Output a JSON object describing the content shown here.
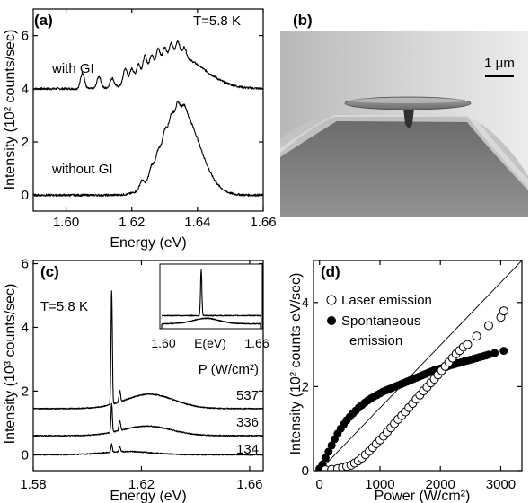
{
  "panels": {
    "a": {
      "label": "(a)",
      "annotation": "T=5.8 K"
    },
    "b": {
      "label": "(b)",
      "scalebar": "1 μm"
    },
    "c": {
      "label": "(c)",
      "annotation": "T=5.8 K",
      "power_header": "P (W/cm²)",
      "inset_xlabel": "E(eV)"
    },
    "d": {
      "label": "(d)"
    }
  },
  "chart_data": [
    {
      "panel": "a",
      "type": "line",
      "xlabel": "Energy (eV)",
      "ylabel": "Intensity (10² counts/sec)",
      "xlim": [
        1.59,
        1.66
      ],
      "ylim": [
        -0.6,
        7
      ],
      "xticks": [
        "1.60",
        "1.62",
        "1.64",
        "1.66"
      ],
      "yticks": [
        "0",
        "2",
        "4",
        "6"
      ],
      "series": [
        {
          "name": "with GI",
          "baseline": 4.0,
          "envelope": {
            "center": 1.634,
            "width": 0.008,
            "height": 1.2
          },
          "peaks": [
            [
              1.605,
              0.6
            ],
            [
              1.61,
              0.45
            ],
            [
              1.614,
              0.35
            ],
            [
              1.618,
              0.6
            ],
            [
              1.62,
              0.5
            ],
            [
              1.622,
              0.55
            ],
            [
              1.624,
              0.7
            ],
            [
              1.626,
              0.55
            ],
            [
              1.628,
              0.6
            ],
            [
              1.63,
              0.5
            ],
            [
              1.632,
              0.55
            ],
            [
              1.634,
              0.6
            ],
            [
              1.636,
              0.4
            ]
          ]
        },
        {
          "name": "without GI",
          "baseline": 0.0,
          "envelope": {
            "center": 1.635,
            "width": 0.0055,
            "height": 3.2
          },
          "peaks": [
            [
              1.623,
              0.25
            ],
            [
              1.626,
              0.3
            ],
            [
              1.628,
              0.3
            ],
            [
              1.63,
              0.35
            ],
            [
              1.632,
              0.3
            ],
            [
              1.634,
              0.35
            ],
            [
              1.636,
              0.25
            ]
          ]
        }
      ]
    },
    {
      "panel": "c",
      "type": "line",
      "xlabel": "Energy (eV)",
      "ylabel": "Intensity (10³ counts/sec)",
      "xlim": [
        1.58,
        1.665
      ],
      "ylim": [
        -0.5,
        6.1
      ],
      "xticks": [
        "1.58",
        "1.62",
        "1.66"
      ],
      "yticks": [
        "0",
        "2",
        "4",
        "6"
      ],
      "series": [
        {
          "name": "537",
          "baseline": 1.45,
          "lasing_peak": [
            1.609,
            3.55
          ],
          "side_peak": [
            1.612,
            0.35
          ],
          "broad": [
            1.623,
            0.45
          ]
        },
        {
          "name": "336",
          "baseline": 0.6,
          "lasing_peak": [
            1.609,
            0.9
          ],
          "side_peak": [
            1.612,
            0.3
          ],
          "broad": [
            1.622,
            0.3
          ]
        },
        {
          "name": "134",
          "baseline": 0.0,
          "lasing_peak": [
            1.609,
            0.25
          ],
          "side_peak": [
            1.612,
            0.15
          ],
          "broad": [
            1.615,
            0.1
          ]
        }
      ],
      "inset": {
        "xlim": [
          1.6,
          1.66
        ],
        "xticks": [
          "1.60",
          "1.66"
        ],
        "series": [
          {
            "name": "upper",
            "baseline": 0.25,
            "lasing_peak": [
              1.624,
              1.0
            ]
          },
          {
            "name": "lower",
            "baseline": 0.07,
            "broad": [
              1.627,
              0.12
            ]
          }
        ]
      }
    },
    {
      "panel": "d",
      "type": "scatter",
      "xlabel": "Power (W/cm²)",
      "ylabel": "Intensity (10² counts eV/sec)",
      "xlim": [
        -100,
        3350
      ],
      "ylim": [
        0,
        5
      ],
      "xticks": [
        "0",
        "1000",
        "2000",
        "3000"
      ],
      "yticks": [
        "0",
        "2",
        "4"
      ],
      "series": [
        {
          "name": "Laser emission",
          "marker": "open-circle",
          "x": [
            100,
            200,
            300,
            380,
            450,
            520,
            580,
            640,
            700,
            760,
            820,
            880,
            940,
            1000,
            1060,
            1120,
            1180,
            1240,
            1300,
            1360,
            1420,
            1480,
            1540,
            1600,
            1660,
            1720,
            1780,
            1840,
            1900,
            1960,
            2020,
            2080,
            2140,
            2200,
            2260,
            2320,
            2380,
            2450,
            2600,
            2800,
            3000,
            3050
          ],
          "y": [
            0.02,
            0.03,
            0.05,
            0.07,
            0.1,
            0.13,
            0.18,
            0.23,
            0.3,
            0.38,
            0.46,
            0.55,
            0.64,
            0.73,
            0.82,
            0.92,
            1.02,
            1.12,
            1.22,
            1.31,
            1.4,
            1.5,
            1.6,
            1.7,
            1.8,
            1.9,
            1.99,
            2.09,
            2.18,
            2.28,
            2.38,
            2.48,
            2.58,
            2.68,
            2.78,
            2.86,
            2.94,
            3.0,
            3.2,
            3.45,
            3.65,
            3.8
          ]
        },
        {
          "name": "Spontaneous emission",
          "marker": "filled-circle",
          "x": [
            0,
            50,
            100,
            150,
            200,
            250,
            300,
            350,
            400,
            450,
            500,
            550,
            600,
            650,
            700,
            750,
            800,
            850,
            900,
            950,
            1000,
            1050,
            1100,
            1150,
            1200,
            1250,
            1300,
            1350,
            1400,
            1450,
            1500,
            1550,
            1600,
            1650,
            1700,
            1750,
            1800,
            1850,
            1900,
            1950,
            2000,
            2050,
            2100,
            2150,
            2200,
            2250,
            2300,
            2350,
            2400,
            2450,
            2500,
            2550,
            2600,
            2650,
            2700,
            2750,
            2800,
            2900,
            3050
          ],
          "y": [
            0.05,
            0.15,
            0.3,
            0.45,
            0.6,
            0.75,
            0.88,
            1.0,
            1.1,
            1.2,
            1.28,
            1.36,
            1.43,
            1.5,
            1.56,
            1.62,
            1.67,
            1.72,
            1.76,
            1.8,
            1.84,
            1.88,
            1.91,
            1.94,
            1.97,
            2.0,
            2.03,
            2.06,
            2.09,
            2.12,
            2.15,
            2.18,
            2.21,
            2.24,
            2.27,
            2.3,
            2.33,
            2.36,
            2.39,
            2.41,
            2.43,
            2.45,
            2.47,
            2.5,
            2.52,
            2.54,
            2.56,
            2.58,
            2.6,
            2.62,
            2.64,
            2.66,
            2.68,
            2.7,
            2.72,
            2.74,
            2.76,
            2.8,
            2.85
          ]
        },
        {
          "name": "linear reference",
          "marker": "line",
          "x": [
            0,
            3350
          ],
          "y": [
            0,
            5.0
          ]
        }
      ]
    }
  ]
}
